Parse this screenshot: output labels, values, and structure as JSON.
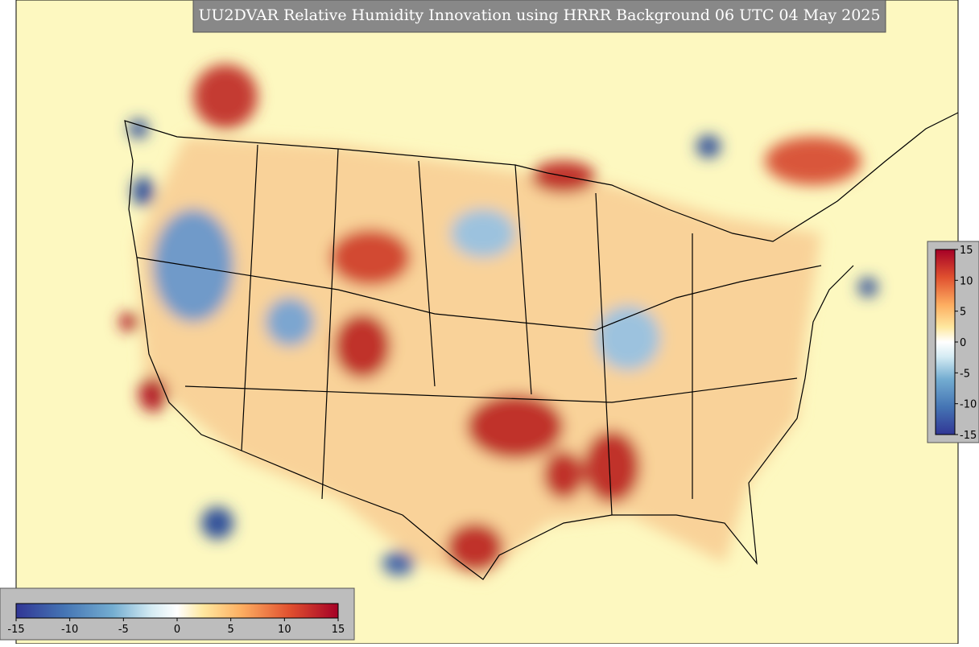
{
  "title": "UU2DVAR Relative Humidity Innovation using HRRR Background 06 UTC 04 May 2025",
  "colorbar_horizontal": {
    "lim": [
      -15,
      15
    ],
    "ticks": [
      -15,
      -10,
      -5,
      0,
      5,
      10,
      15
    ]
  },
  "colorbar_vertical": {
    "lim": [
      -15,
      15
    ],
    "ticks": [
      -15,
      -10,
      -5,
      0,
      5,
      10,
      15
    ]
  }
}
